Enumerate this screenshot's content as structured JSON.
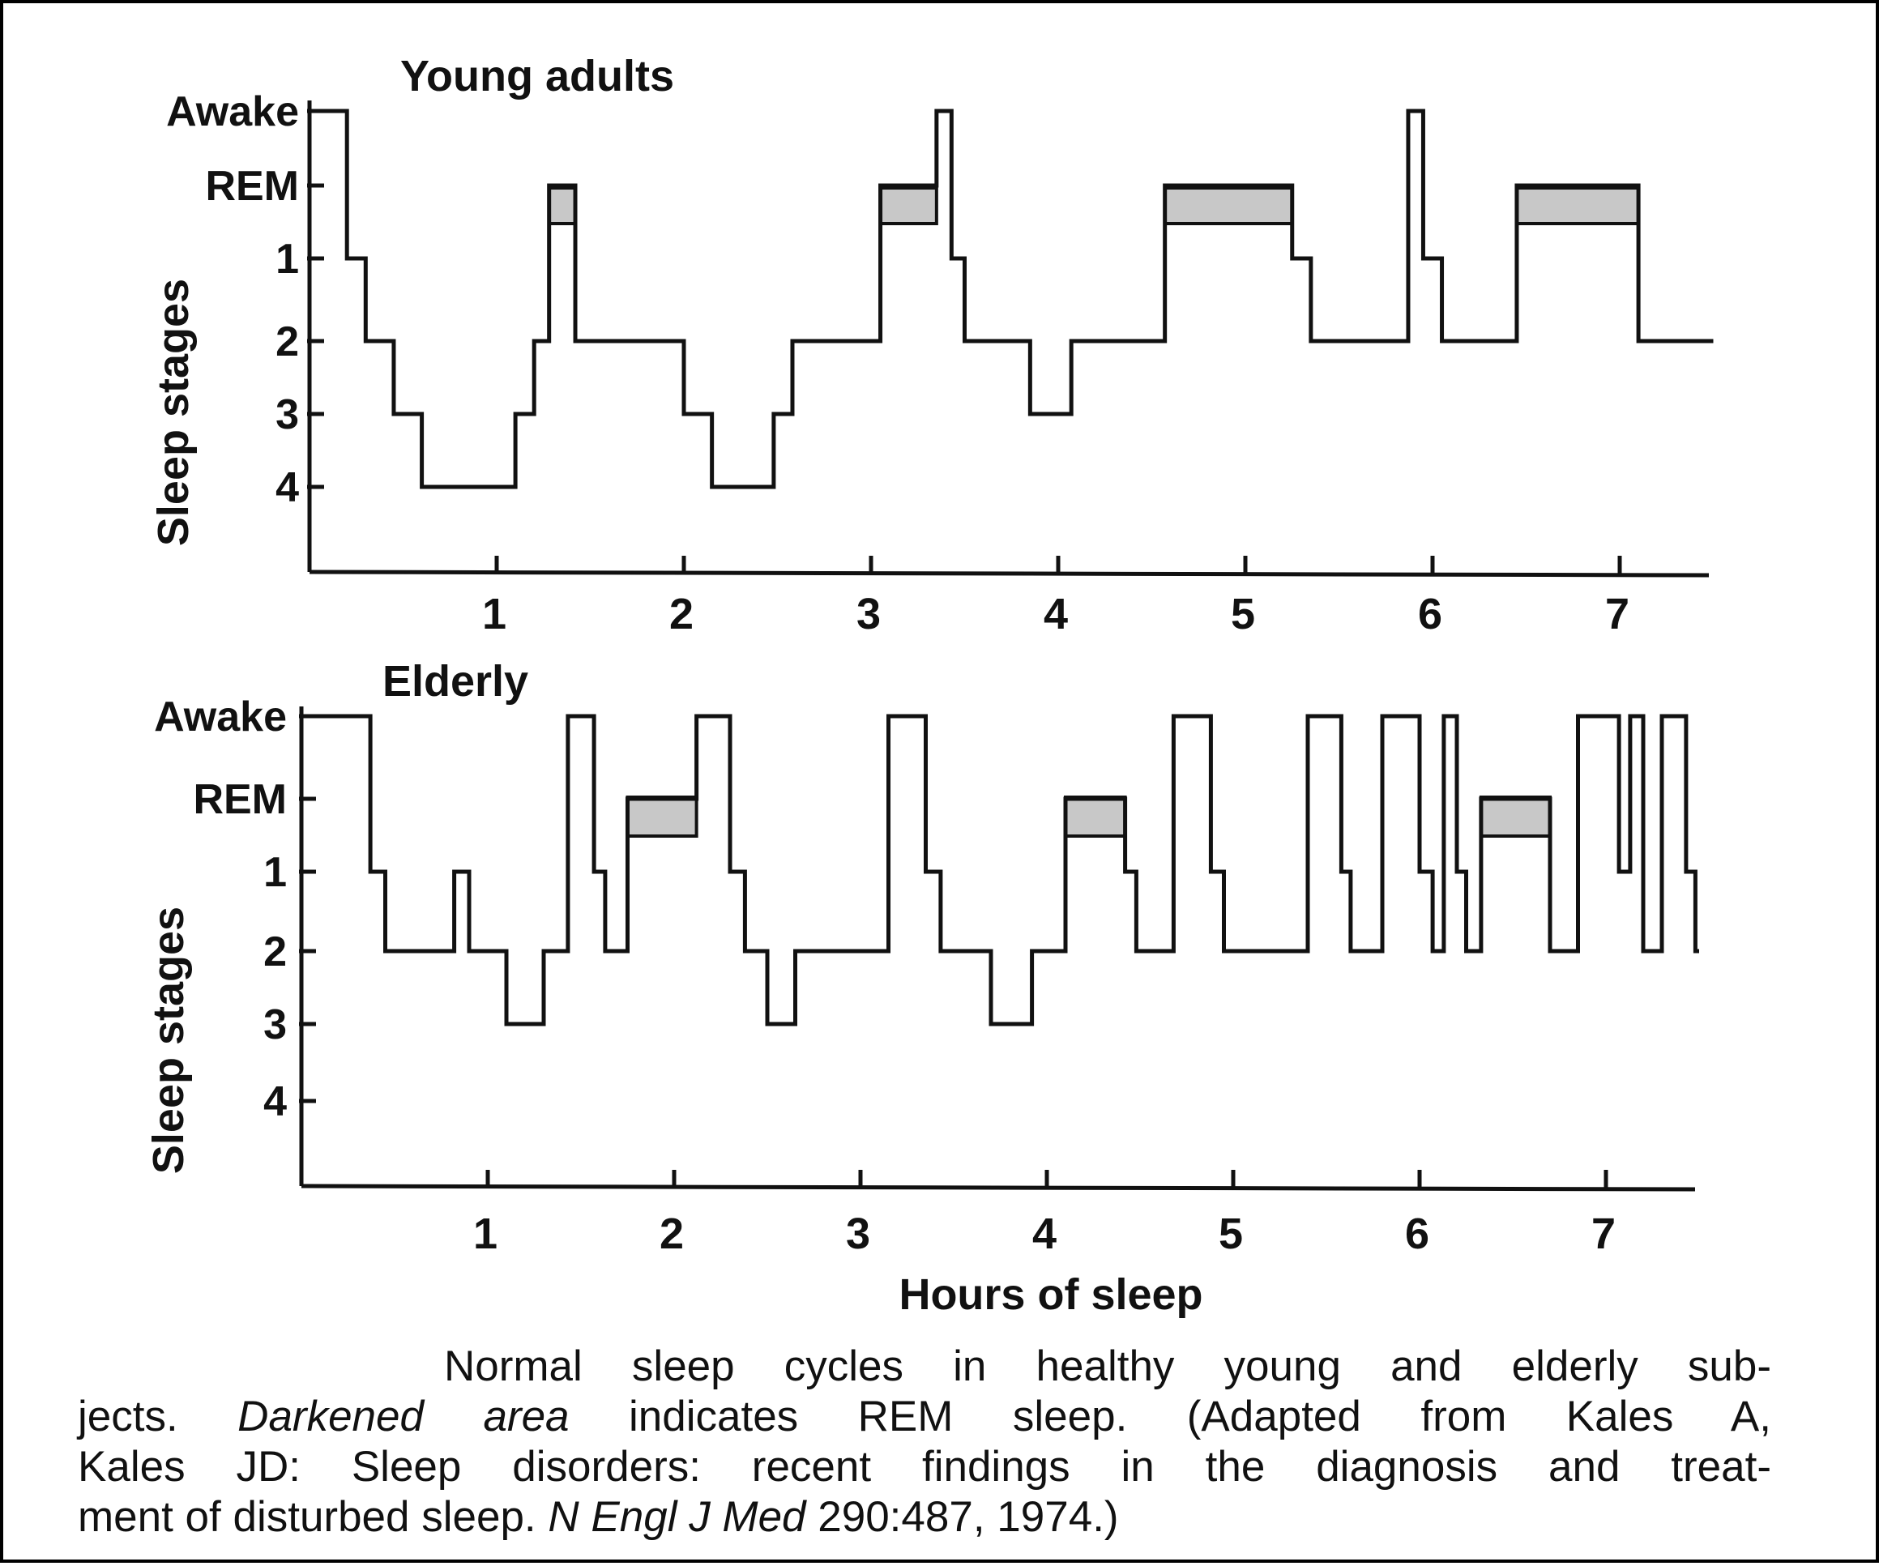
{
  "chart_data": [
    {
      "type": "line",
      "title": "Young adults",
      "ylabel": "Sleep stages",
      "xlabel": "",
      "y_categories": [
        "Awake",
        "REM",
        "1",
        "2",
        "3",
        "4"
      ],
      "x_ticks": [
        1,
        2,
        3,
        4,
        5,
        6,
        7
      ],
      "xlim": [
        0,
        7.5
      ],
      "grid": false,
      "hypnogram": [
        {
          "x": 0.0,
          "stage": "Awake"
        },
        {
          "x": 0.2,
          "stage": "1"
        },
        {
          "x": 0.3,
          "stage": "2"
        },
        {
          "x": 0.45,
          "stage": "3"
        },
        {
          "x": 0.6,
          "stage": "4"
        },
        {
          "x": 1.1,
          "stage": "3"
        },
        {
          "x": 1.2,
          "stage": "2"
        },
        {
          "x": 1.28,
          "stage": "REM"
        },
        {
          "x": 1.42,
          "stage": "2"
        },
        {
          "x": 2.0,
          "stage": "3"
        },
        {
          "x": 2.15,
          "stage": "4"
        },
        {
          "x": 2.48,
          "stage": "3"
        },
        {
          "x": 2.58,
          "stage": "2"
        },
        {
          "x": 3.05,
          "stage": "REM"
        },
        {
          "x": 3.35,
          "stage": "Awake"
        },
        {
          "x": 3.43,
          "stage": "1"
        },
        {
          "x": 3.5,
          "stage": "2"
        },
        {
          "x": 3.85,
          "stage": "3"
        },
        {
          "x": 4.07,
          "stage": "2"
        },
        {
          "x": 4.57,
          "stage": "REM"
        },
        {
          "x": 5.25,
          "stage": "1"
        },
        {
          "x": 5.35,
          "stage": "2"
        },
        {
          "x": 5.87,
          "stage": "Awake"
        },
        {
          "x": 5.95,
          "stage": "1"
        },
        {
          "x": 6.05,
          "stage": "2"
        },
        {
          "x": 6.45,
          "stage": "REM"
        },
        {
          "x": 7.1,
          "stage": "2"
        },
        {
          "x": 7.5,
          "stage": "2"
        }
      ],
      "rem_periods": [
        [
          1.28,
          1.42
        ],
        [
          3.05,
          3.35
        ],
        [
          4.57,
          5.25
        ],
        [
          6.45,
          7.1
        ]
      ]
    },
    {
      "type": "line",
      "title": "Elderly",
      "ylabel": "Sleep stages",
      "xlabel": "Hours of sleep",
      "y_categories": [
        "Awake",
        "REM",
        "1",
        "2",
        "3",
        "4"
      ],
      "x_ticks": [
        1,
        2,
        3,
        4,
        5,
        6,
        7
      ],
      "xlim": [
        0,
        7.5
      ],
      "grid": false,
      "hypnogram": [
        {
          "x": 0.0,
          "stage": "Awake"
        },
        {
          "x": 0.37,
          "stage": "1"
        },
        {
          "x": 0.45,
          "stage": "2"
        },
        {
          "x": 0.82,
          "stage": "1"
        },
        {
          "x": 0.9,
          "stage": "2"
        },
        {
          "x": 1.1,
          "stage": "3"
        },
        {
          "x": 1.3,
          "stage": "2"
        },
        {
          "x": 1.43,
          "stage": "Awake"
        },
        {
          "x": 1.57,
          "stage": "1"
        },
        {
          "x": 1.63,
          "stage": "2"
        },
        {
          "x": 1.75,
          "stage": "REM"
        },
        {
          "x": 2.12,
          "stage": "Awake"
        },
        {
          "x": 2.3,
          "stage": "1"
        },
        {
          "x": 2.38,
          "stage": "2"
        },
        {
          "x": 2.5,
          "stage": "3"
        },
        {
          "x": 2.65,
          "stage": "2"
        },
        {
          "x": 3.15,
          "stage": "Awake"
        },
        {
          "x": 3.35,
          "stage": "1"
        },
        {
          "x": 3.43,
          "stage": "2"
        },
        {
          "x": 3.7,
          "stage": "3"
        },
        {
          "x": 3.92,
          "stage": "2"
        },
        {
          "x": 4.1,
          "stage": "REM"
        },
        {
          "x": 4.42,
          "stage": "1"
        },
        {
          "x": 4.48,
          "stage": "2"
        },
        {
          "x": 4.68,
          "stage": "Awake"
        },
        {
          "x": 4.88,
          "stage": "1"
        },
        {
          "x": 4.95,
          "stage": "2"
        },
        {
          "x": 5.4,
          "stage": "Awake"
        },
        {
          "x": 5.58,
          "stage": "1"
        },
        {
          "x": 5.63,
          "stage": "2"
        },
        {
          "x": 5.8,
          "stage": "Awake"
        },
        {
          "x": 6.0,
          "stage": "1"
        },
        {
          "x": 6.07,
          "stage": "2"
        },
        {
          "x": 6.13,
          "stage": "Awake"
        },
        {
          "x": 6.2,
          "stage": "1"
        },
        {
          "x": 6.25,
          "stage": "2"
        },
        {
          "x": 6.33,
          "stage": "REM"
        },
        {
          "x": 6.7,
          "stage": "2"
        },
        {
          "x": 6.85,
          "stage": "Awake"
        },
        {
          "x": 7.07,
          "stage": "1"
        },
        {
          "x": 7.13,
          "stage": "Awake"
        },
        {
          "x": 7.2,
          "stage": "2"
        },
        {
          "x": 7.3,
          "stage": "Awake"
        },
        {
          "x": 7.43,
          "stage": "1"
        },
        {
          "x": 7.48,
          "stage": "2"
        },
        {
          "x": 7.5,
          "stage": "2"
        }
      ],
      "rem_periods": [
        [
          1.75,
          2.12
        ],
        [
          4.1,
          4.42
        ],
        [
          6.33,
          6.7
        ]
      ]
    }
  ],
  "caption": {
    "line1": "Normal sleep cycles in healthy young and elderly sub-",
    "line2_before": "jects. ",
    "line2_italic": "Darkened area",
    "line2_after": " indicates REM sleep. (Adapted from Kales A,",
    "line3": "Kales JD: Sleep disorders: recent findings in the diagnosis and treat-",
    "line4_before": "ment of disturbed sleep. ",
    "line4_italic": "N Engl J Med",
    "line4_after": " 290:487, 1974.)"
  },
  "colors": {
    "line": "#111111",
    "rem_fill": "#c8c8c8",
    "frame": "#000000"
  }
}
